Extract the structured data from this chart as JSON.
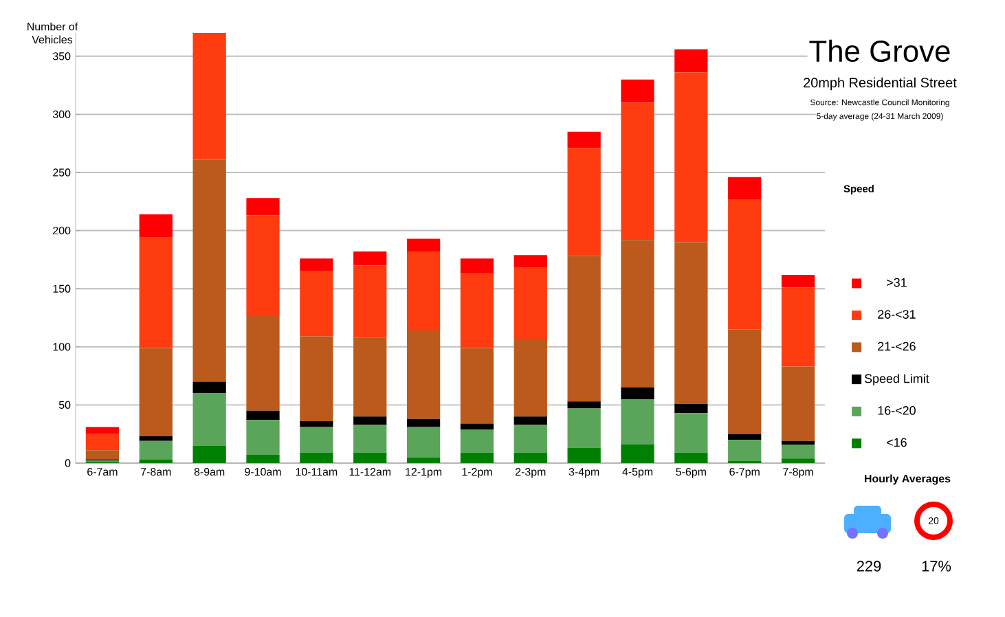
{
  "chart_data": {
    "type": "bar",
    "stacked": true,
    "title": "The Grove",
    "subtitle": "20mph Residential Street",
    "ylabel": "Number of Vehicles",
    "legend_title": "Speed",
    "categories": [
      "6-7am",
      "7-8am",
      "8-9am",
      "9-10am",
      "10-11am",
      "11-12am",
      "12-1pm",
      "1-2pm",
      "2-3pm",
      "3-4pm",
      "4-5pm",
      "5-6pm",
      "6-7pm",
      "7-8pm"
    ],
    "series": [
      {
        "name": "<16",
        "color": "#008000",
        "values": [
          1,
          3,
          15,
          7,
          9,
          9,
          5,
          9,
          9,
          13,
          16,
          9,
          2,
          4
        ]
      },
      {
        "name": "16-<20",
        "color": "#5aa55a",
        "values": [
          1,
          16,
          45,
          30,
          22,
          24,
          26,
          20,
          24,
          34,
          39,
          34,
          18,
          12
        ]
      },
      {
        "name": "Speed Limit",
        "color": "#000000",
        "values": [
          1,
          4,
          10,
          8,
          5,
          7,
          7,
          5,
          7,
          6,
          10,
          8,
          5,
          3
        ]
      },
      {
        "name": "21-<26",
        "color": "#bb5a1c",
        "values": [
          8,
          76,
          191,
          82,
          73,
          68,
          76,
          65,
          67,
          125,
          127,
          139,
          90,
          64
        ]
      },
      {
        "name": "26-<31",
        "color": "#ff3c10",
        "values": [
          14,
          95,
          109,
          86,
          56,
          62,
          68,
          64,
          61,
          93,
          118,
          146,
          112,
          68
        ]
      },
      {
        "name": ">31",
        "color": "#ff0000",
        "values": [
          6,
          20,
          null,
          15,
          11,
          12,
          11,
          13,
          11,
          14,
          20,
          20,
          19,
          11
        ]
      }
    ],
    "ylim": [
      0,
      370
    ],
    "yticks": [
      0,
      50,
      100,
      150,
      200,
      250,
      300,
      350
    ],
    "grid": "y",
    "legend": "right",
    "annotations": [
      "Source: Newcastle Council Monitoring",
      "5-day average (24-31 March 2009)",
      "Hourly Averages",
      "20",
      "229",
      "17%"
    ]
  }
}
